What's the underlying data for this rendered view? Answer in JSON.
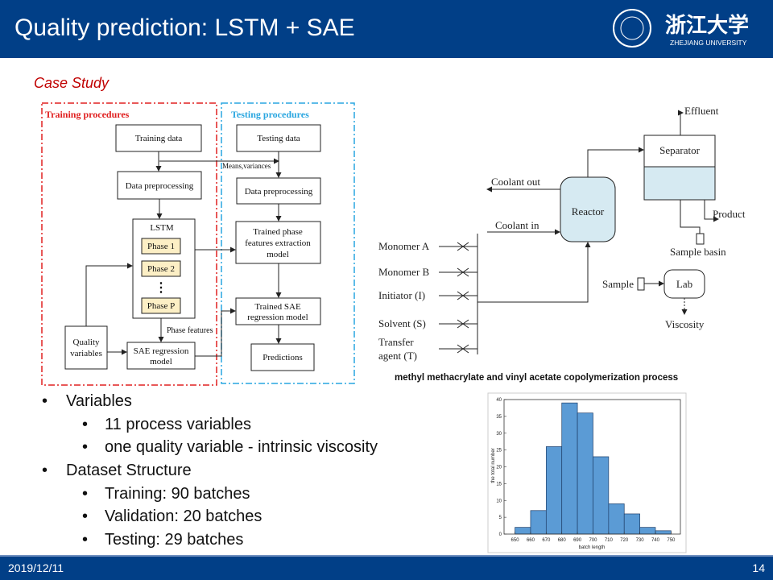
{
  "header": {
    "title": "Quality prediction: LSTM + SAE",
    "logo_cn": "浙江大学",
    "logo_en": "ZHEJIANG UNIVERSITY"
  },
  "section": "Case Study",
  "flowchart": {
    "training_title": "Training procedures",
    "testing_title": "Testing procedures",
    "training_data": "Training data",
    "testing_data": "Testing data",
    "means": "Means,variances",
    "preprocessing_train": "Data preprocessing",
    "preprocessing_test": "Data preprocessing",
    "lstm": "LSTM",
    "phases": [
      "Phase 1",
      "Phase 2",
      "⋮",
      "Phase P"
    ],
    "trained_phase": [
      "Trained phase",
      "features extraction",
      "model"
    ],
    "phase_features": "Phase features",
    "quality": [
      "Quality",
      "variables"
    ],
    "sae": [
      "SAE regression",
      "model"
    ],
    "trained_sae": [
      "Trained SAE",
      "regression model"
    ],
    "predictions": "Predictions"
  },
  "process": {
    "effluent": "Effluent",
    "separator": "Separator",
    "coolant_out": "Coolant out",
    "reactor": "Reactor",
    "coolant_in": "Coolant in",
    "product": "Product",
    "feeds": [
      "Monomer A",
      "Monomer B",
      "Initiator (I)",
      "Solvent (S)"
    ],
    "transfer": [
      "Transfer",
      "agent (T)"
    ],
    "sample_basin": "Sample basin",
    "sample": "Sample",
    "lab": "Lab",
    "viscosity": "Viscosity",
    "caption": "methyl methacrylate and vinyl acetate copolymerization process"
  },
  "bullets": [
    {
      "text": "Variables",
      "items": [
        "11 process variables",
        "one quality variable - intrinsic viscosity"
      ]
    },
    {
      "text": "Dataset Structure",
      "items": [
        "Training: 90 batches",
        "Validation: 20 batches",
        "Testing: 29 batches"
      ]
    }
  ],
  "footer": {
    "date": "2019/12/11",
    "page": "14"
  },
  "chart_data": {
    "type": "histogram",
    "xlabel": "batch length",
    "ylabel": "the total number",
    "bins": [
      650,
      660,
      670,
      680,
      690,
      700,
      710,
      720,
      730,
      740,
      750
    ],
    "values": [
      2,
      7,
      26,
      39,
      36,
      23,
      9,
      6,
      2,
      1
    ],
    "color": "#5b9bd5",
    "xlim": [
      643,
      756
    ],
    "ylim": [
      0,
      40
    ],
    "xticks": [
      650,
      660,
      670,
      680,
      690,
      700,
      710,
      720,
      730,
      740,
      750
    ],
    "yticks": [
      0,
      5,
      10,
      15,
      20,
      25,
      30,
      35,
      40
    ]
  }
}
